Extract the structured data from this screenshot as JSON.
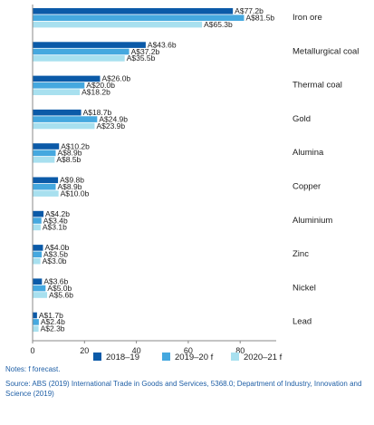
{
  "chart_data": {
    "type": "bar",
    "orientation": "horizontal",
    "categories": [
      "Iron ore",
      "Metallurgical coal",
      "Thermal coal",
      "Gold",
      "Alumina",
      "Copper",
      "Aluminium",
      "Zinc",
      "Nickel",
      "Lead"
    ],
    "series": [
      {
        "name": "2018–19",
        "color": "#0b5aa8",
        "values": [
          77.2,
          43.6,
          26.0,
          18.7,
          10.2,
          9.8,
          4.2,
          4.0,
          3.6,
          1.7
        ],
        "labels": [
          "A$77.2b",
          "A$43.6b",
          "A$26.0b",
          "A$18.7b",
          "A$10.2b",
          "A$9.8b",
          "A$4.2b",
          "A$4.0b",
          "A$3.6b",
          "A$1.7b"
        ]
      },
      {
        "name": "2019–20 f",
        "color": "#45a8df",
        "values": [
          81.5,
          37.2,
          20.0,
          24.9,
          8.9,
          8.9,
          3.4,
          3.5,
          5.0,
          2.4
        ],
        "labels": [
          "A$81.5b",
          "A$37.2b",
          "A$20.0b",
          "A$24.9b",
          "A$8.9b",
          "A$8.9b",
          "A$3.4b",
          "A$3.5b",
          "A$5.0b",
          "A$2.4b"
        ]
      },
      {
        "name": "2020–21 f",
        "color": "#a8e0ef",
        "values": [
          65.3,
          35.5,
          18.2,
          23.9,
          8.5,
          10.0,
          3.1,
          3.0,
          5.6,
          2.3
        ],
        "labels": [
          "A$65.3b",
          "A$35.5b",
          "A$18.2b",
          "A$23.9b",
          "A$8.5b",
          "A$10.0b",
          "A$3.1b",
          "A$3.0b",
          "A$5.6b",
          "A$2.3b"
        ]
      }
    ],
    "xlim": [
      0,
      100
    ],
    "xticks": [
      "0",
      "20",
      "40",
      "60",
      "80"
    ],
    "grid": false,
    "legend_position": "bottom"
  },
  "notes": "Notes: f forecast.",
  "source": "Source: ABS (2019) International Trade in Goods and Services, 5368.0; Department of Industry, Innovation and Science (2019)"
}
